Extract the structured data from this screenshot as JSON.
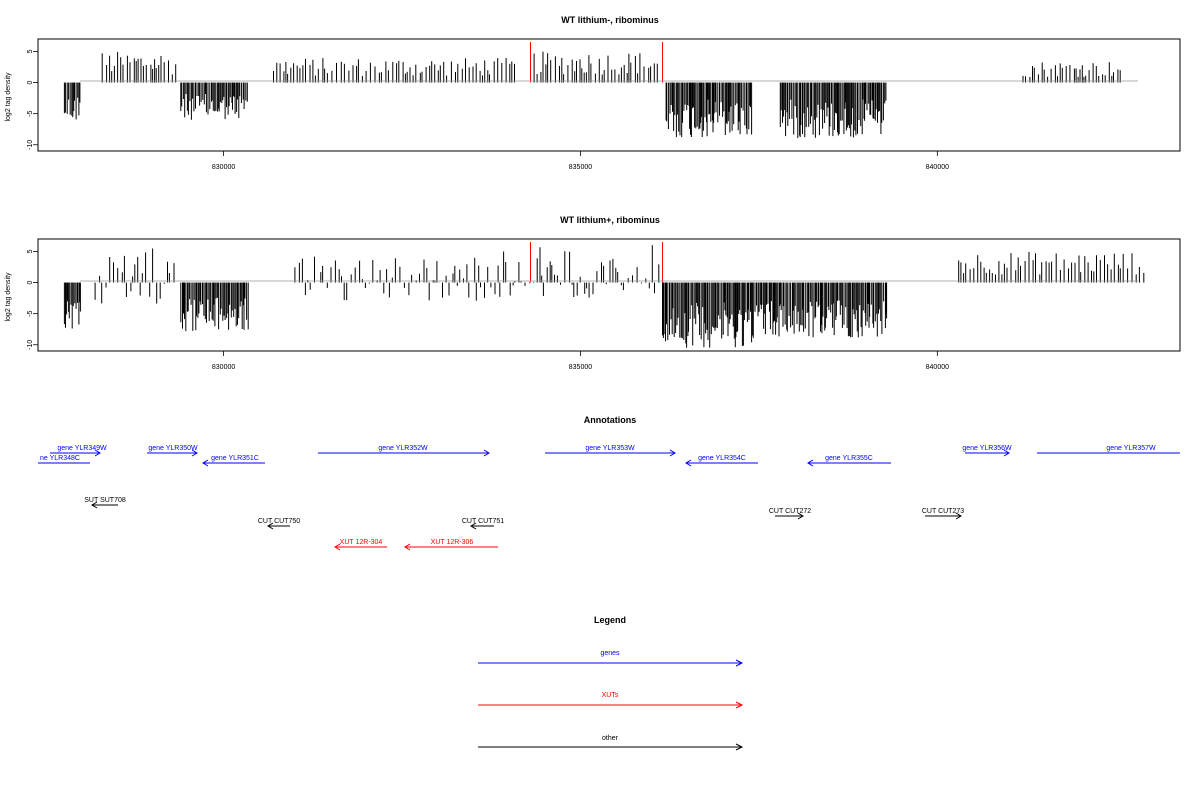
{
  "panels": [
    {
      "title": "WT lithium-, ribominus",
      "ylabel": "log2 tag density",
      "yticks": [
        "5",
        "0",
        "-5",
        "-10"
      ],
      "ytick_values": [
        5,
        0,
        -5,
        -10
      ],
      "ylim": [
        -11,
        7
      ],
      "xticks": [
        "830000",
        "835000",
        "840000"
      ],
      "xtick_values": [
        830000,
        835000,
        840000
      ],
      "xlim": [
        827400,
        843400
      ]
    },
    {
      "title": "WT lithium+, ribominus",
      "ylabel": "log2 tag density",
      "yticks": [
        "5",
        "0",
        "-5",
        "-10"
      ],
      "ytick_values": [
        5,
        0,
        -5,
        -10
      ],
      "ylim": [
        -11,
        7
      ],
      "xticks": [
        "830000",
        "835000",
        "840000"
      ],
      "xtick_values": [
        830000,
        835000,
        840000
      ],
      "xlim": [
        827400,
        843400
      ]
    }
  ],
  "chart_data": {
    "type": "bar",
    "x_range": [
      827400,
      843400
    ],
    "ylim": [
      -11,
      7
    ],
    "red_markers": [
      834300,
      836150
    ],
    "series": [
      {
        "name": "WT lithium-, ribominus",
        "regions": [
          {
            "start": 827770,
            "end": 828000,
            "min": -6.5,
            "max": 0
          },
          {
            "start": 828300,
            "end": 829350,
            "min": 0,
            "max": 5
          },
          {
            "start": 829400,
            "end": 830350,
            "min": -6,
            "max": 0
          },
          {
            "start": 830700,
            "end": 834100,
            "min": 0,
            "max": 4
          },
          {
            "start": 834350,
            "end": 836100,
            "min": 0,
            "max": 5
          },
          {
            "start": 836200,
            "end": 837400,
            "min": -9,
            "max": 0
          },
          {
            "start": 837800,
            "end": 839300,
            "min": -9,
            "max": 0
          },
          {
            "start": 841200,
            "end": 842600,
            "min": 0,
            "max": 3.5
          }
        ]
      },
      {
        "name": "WT lithium+, ribominus",
        "regions": [
          {
            "start": 827770,
            "end": 828000,
            "min": -7.5,
            "max": 0
          },
          {
            "start": 828200,
            "end": 829350,
            "min": -3.5,
            "max": 5.5
          },
          {
            "start": 829400,
            "end": 830350,
            "min": -8,
            "max": 0
          },
          {
            "start": 831000,
            "end": 833700,
            "min": -3,
            "max": 4.5
          },
          {
            "start": 833700,
            "end": 836100,
            "min": -2.5,
            "max": 6
          },
          {
            "start": 836150,
            "end": 837400,
            "min": -10.5,
            "max": 0
          },
          {
            "start": 837400,
            "end": 839300,
            "min": -9,
            "max": 0
          },
          {
            "start": 840300,
            "end": 842900,
            "min": 0,
            "max": 5
          }
        ]
      }
    ]
  },
  "annotations": {
    "title": "Annotations",
    "genes": [
      {
        "label": "gene YLR349W",
        "dir": "right"
      },
      {
        "label": "ne YLR348C",
        "dir": "left"
      },
      {
        "label": "gene YLR350W",
        "dir": "right"
      },
      {
        "label": "gene YLR351C",
        "dir": "left"
      },
      {
        "label": "gene YLR352W",
        "dir": "right"
      },
      {
        "label": "gene YLR353W",
        "dir": "right"
      },
      {
        "label": "gene YLR354C",
        "dir": "left"
      },
      {
        "label": "gene YLR355C",
        "dir": "left"
      },
      {
        "label": "gene YLR356W",
        "dir": "right"
      },
      {
        "label": "gene YLR357W",
        "dir": "right"
      }
    ],
    "others": [
      {
        "label": "SUT SUT708",
        "dir": "left"
      },
      {
        "label": "CUT CUT750",
        "dir": "left"
      },
      {
        "label": "CUT CUT751",
        "dir": "left"
      },
      {
        "label": "CUT CUT272",
        "dir": "right"
      },
      {
        "label": "CUT CUT273",
        "dir": "right"
      }
    ],
    "xuts": [
      {
        "label": "XUT 12R-304",
        "dir": "left"
      },
      {
        "label": "XUT 12R-306",
        "dir": "left"
      }
    ]
  },
  "legend": {
    "title": "Legend",
    "items": [
      {
        "label": "genes",
        "color": "#0000ff"
      },
      {
        "label": "XUTs",
        "color": "#ff0000"
      },
      {
        "label": "other",
        "color": "#000000"
      }
    ]
  },
  "colors": {
    "gene": "#0000ff",
    "xut": "#ff0000",
    "other": "#000000",
    "marker": "#ff0000"
  }
}
